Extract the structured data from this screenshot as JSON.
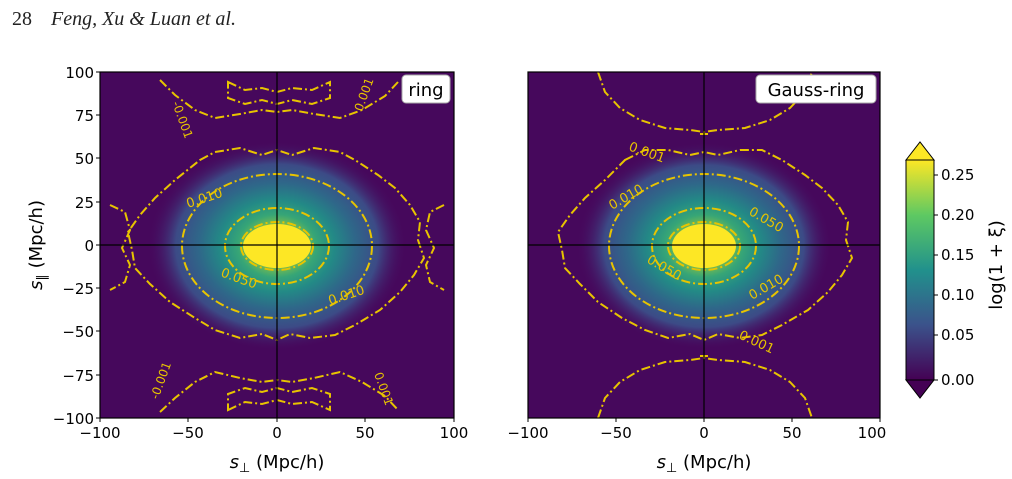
{
  "header": {
    "page_number": "28",
    "authors": "Feng, Xu & Luan et al."
  },
  "chart_data": [
    {
      "type": "heatmap",
      "label": "ring",
      "xlabel_var": "s",
      "xlabel_sub": "⊥",
      "xlabel_unit": " (Mpc/h)",
      "ylabel_var": "s",
      "ylabel_sub": "∥",
      "ylabel_unit": " (Mpc/h)",
      "xlim": [
        -100,
        100
      ],
      "ylim": [
        -100,
        100
      ],
      "xticks": [
        "−100",
        "−50",
        "0",
        "50",
        "100"
      ],
      "yticks": [
        "100",
        "75",
        "50",
        "25",
        "0",
        "−25",
        "−50",
        "−75",
        "−100"
      ],
      "contour_levels": [
        0.001,
        0.01,
        0.05
      ],
      "contour_labels": [
        "-0.001",
        "0.001",
        "-0.001",
        "0.001",
        "0.010",
        "0.050",
        "0.010"
      ]
    },
    {
      "type": "heatmap",
      "label": "Gauss-ring",
      "xlabel_var": "s",
      "xlabel_sub": "⊥",
      "xlabel_unit": " (Mpc/h)",
      "xlim": [
        -100,
        100
      ],
      "ylim": [
        -100,
        100
      ],
      "xticks": [
        "−100",
        "−50",
        "0",
        "50",
        "100"
      ],
      "contour_levels": [
        0.001,
        0.01,
        0.05
      ],
      "contour_labels": [
        "0.001",
        "0.010",
        "0.050",
        "0.050",
        "0.010",
        "0.001"
      ]
    }
  ],
  "colorbar": {
    "label": "log(1 + ξ)",
    "range": [
      0.0,
      0.28
    ],
    "ticks": [
      "0.25",
      "0.20",
      "0.15",
      "0.10",
      "0.05",
      "0.00"
    ],
    "colormap": [
      "#440154",
      "#3b528b",
      "#21918c",
      "#5ec962",
      "#fde725"
    ]
  },
  "colors": {
    "contour": "#e8c400",
    "background": "#46085c"
  }
}
